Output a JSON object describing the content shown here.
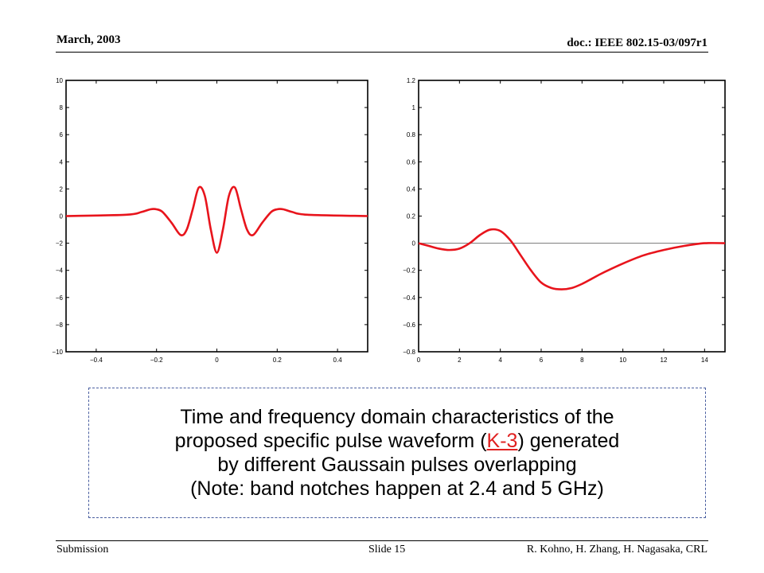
{
  "header": {
    "date": "March, 2003",
    "doc_id": "doc.: IEEE 802.15-03/097r1"
  },
  "footer": {
    "submission": "Submission",
    "slide": "Slide 15",
    "authors": "R. Kohno, H. Zhang, H. Nagasaka, CRL"
  },
  "caption": {
    "line1": "Time and frequency domain characteristics of the",
    "line2_pre": "proposed specific pulse waveform (",
    "line2_link": "K-3",
    "line2_post": ") generated",
    "line3": "by different Gaussain pulses overlapping",
    "line4": "(Note: band notches happen at 2.4 and 5 GHz)"
  },
  "chart_data": [
    {
      "type": "line",
      "title": "",
      "xlabel": "",
      "ylabel": "",
      "xlim": [
        -0.5,
        0.5
      ],
      "ylim": [
        -10,
        10
      ],
      "xticks": [
        -0.4,
        -0.2,
        0,
        0.2,
        0.4
      ],
      "yticks": [
        10,
        8,
        6,
        4,
        2,
        0,
        -2,
        -4,
        -6,
        -8,
        -10
      ],
      "xtick_labels": [
        "−0.4",
        "−0.2",
        "0",
        "0.2",
        "0.4"
      ],
      "ytick_labels": [
        "10",
        "8",
        "6",
        "4",
        "2",
        "0",
        "−2",
        "−4",
        "−6",
        "−8",
        "−10"
      ],
      "grid": false,
      "series": [
        {
          "color": "#e8141c",
          "x": [
            -0.5,
            -0.3,
            -0.25,
            -0.22,
            -0.2,
            -0.18,
            -0.15,
            -0.12,
            -0.1,
            -0.08,
            -0.06,
            -0.04,
            -0.02,
            0,
            0.02,
            0.04,
            0.06,
            0.08,
            0.1,
            0.12,
            0.15,
            0.18,
            0.2,
            0.22,
            0.25,
            0.3,
            0.5
          ],
          "y": [
            0,
            0.1,
            0.3,
            0.5,
            0.5,
            0.3,
            -0.5,
            -1.4,
            -1.0,
            0.5,
            2.1,
            1.5,
            -1.0,
            -2.7,
            -1.0,
            1.5,
            2.1,
            0.5,
            -1.0,
            -1.4,
            -0.5,
            0.3,
            0.5,
            0.5,
            0.3,
            0.1,
            0
          ]
        }
      ]
    },
    {
      "type": "line",
      "title": "",
      "xlabel": "",
      "ylabel": "",
      "xlim": [
        0,
        15
      ],
      "ylim": [
        -0.8,
        1.2
      ],
      "xticks": [
        0,
        2,
        4,
        6,
        8,
        10,
        12,
        14
      ],
      "yticks": [
        1.2,
        1,
        0.8,
        0.6,
        0.4,
        0.2,
        0,
        -0.2,
        -0.4,
        -0.6,
        -0.8
      ],
      "xtick_labels": [
        "0",
        "2",
        "4",
        "6",
        "8",
        "10",
        "12",
        "14"
      ],
      "ytick_labels": [
        "1.2",
        "1",
        "0.8",
        "0.6",
        "0.4",
        "0.2",
        "0",
        "−0.2",
        "−0.4",
        "−0.6",
        "−0.8"
      ],
      "grid": false,
      "zero_line": true,
      "series": [
        {
          "color": "#e8141c",
          "x": [
            0,
            0.5,
            1,
            1.5,
            2,
            2.5,
            3,
            3.5,
            4,
            4.5,
            5,
            5.5,
            6,
            6.5,
            7,
            7.5,
            8,
            8.5,
            9,
            10,
            11,
            12,
            13,
            14,
            15
          ],
          "y": [
            0.0,
            -0.02,
            -0.04,
            -0.05,
            -0.04,
            0.0,
            0.06,
            0.1,
            0.09,
            0.02,
            -0.09,
            -0.2,
            -0.29,
            -0.33,
            -0.34,
            -0.33,
            -0.3,
            -0.26,
            -0.22,
            -0.15,
            -0.09,
            -0.05,
            -0.02,
            0.0,
            0.0
          ]
        }
      ]
    }
  ]
}
